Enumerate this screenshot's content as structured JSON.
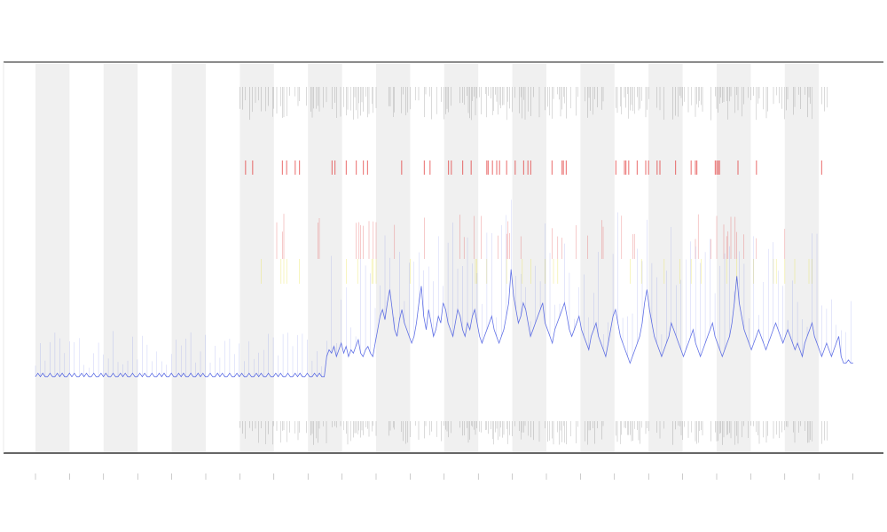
{
  "chart_data": {
    "type": "line",
    "title": "",
    "xlabel": "",
    "ylabel": "",
    "grid": false,
    "legend": "none",
    "x_ticks": [
      "",
      "",
      "",
      "",
      "",
      "",
      "",
      "",
      "",
      "",
      "",
      "",
      "",
      "",
      "",
      "",
      "",
      "",
      "",
      "",
      "",
      "",
      "",
      "",
      ""
    ],
    "shaded_bands": [
      0,
      2,
      4,
      6,
      8,
      10,
      12,
      14,
      16,
      18,
      20,
      22
    ],
    "series": [
      {
        "color": "#3b4fe0",
        "values": [
          8,
          9,
          8,
          9,
          8,
          8,
          9,
          8,
          8,
          9,
          8,
          9,
          8,
          8,
          9,
          8,
          9,
          8,
          8,
          9,
          8,
          9,
          8,
          8,
          9,
          8,
          8,
          9,
          8,
          9,
          8,
          8,
          9,
          8,
          8,
          9,
          8,
          9,
          8,
          8,
          9,
          8,
          8,
          9,
          8,
          9,
          8,
          8,
          9,
          8,
          8,
          9,
          8,
          9,
          8,
          8,
          9,
          8,
          8,
          9,
          8,
          9,
          8,
          8,
          9,
          8,
          8,
          9,
          8,
          9,
          8,
          8,
          9,
          8,
          8,
          9,
          8,
          9,
          8,
          8,
          9,
          8,
          8,
          9,
          8,
          9,
          8,
          8,
          9,
          8,
          8,
          9,
          8,
          9,
          8,
          8,
          9,
          8,
          8,
          9,
          8,
          9,
          8,
          8,
          9,
          8,
          8,
          9,
          8,
          9,
          8,
          8,
          9,
          8,
          8,
          9,
          8,
          9,
          8,
          8,
          14,
          16,
          15,
          17,
          14,
          16,
          18,
          15,
          17,
          14,
          16,
          15,
          17,
          19,
          15,
          14,
          16,
          17,
          15,
          14,
          18,
          22,
          26,
          28,
          25,
          30,
          34,
          28,
          22,
          20,
          25,
          28,
          24,
          22,
          20,
          18,
          20,
          24,
          30,
          35,
          26,
          22,
          28,
          24,
          20,
          22,
          26,
          24,
          30,
          28,
          24,
          22,
          20,
          24,
          28,
          26,
          22,
          20,
          24,
          22,
          26,
          28,
          24,
          20,
          18,
          20,
          22,
          24,
          26,
          22,
          20,
          18,
          20,
          22,
          26,
          30,
          40,
          32,
          28,
          24,
          26,
          30,
          28,
          24,
          20,
          22,
          24,
          26,
          28,
          30,
          24,
          22,
          20,
          18,
          22,
          24,
          26,
          28,
          30,
          26,
          22,
          20,
          22,
          24,
          26,
          22,
          20,
          18,
          16,
          20,
          22,
          24,
          20,
          18,
          16,
          14,
          18,
          22,
          26,
          28,
          24,
          20,
          18,
          16,
          14,
          12,
          14,
          16,
          18,
          20,
          24,
          30,
          34,
          28,
          24,
          20,
          18,
          16,
          14,
          16,
          18,
          20,
          24,
          22,
          20,
          18,
          16,
          14,
          16,
          18,
          20,
          22,
          18,
          16,
          14,
          16,
          18,
          20,
          22,
          24,
          20,
          18,
          16,
          14,
          16,
          18,
          20,
          24,
          30,
          38,
          30,
          26,
          22,
          20,
          18,
          16,
          18,
          20,
          22,
          20,
          18,
          16,
          18,
          20,
          22,
          24,
          22,
          20,
          18,
          20,
          22,
          20,
          18,
          16,
          18,
          16,
          14,
          18,
          20,
          22,
          24,
          20,
          18,
          16,
          14,
          16,
          18,
          16,
          14,
          16,
          18,
          20,
          14,
          12,
          12,
          13,
          12,
          12
        ]
      }
    ],
    "event_colors": {
      "top": "#555555",
      "upper_alert": "#e02020",
      "mid_alert": "#e04040",
      "caution": "#e8e040",
      "bottom": "#555555"
    }
  }
}
